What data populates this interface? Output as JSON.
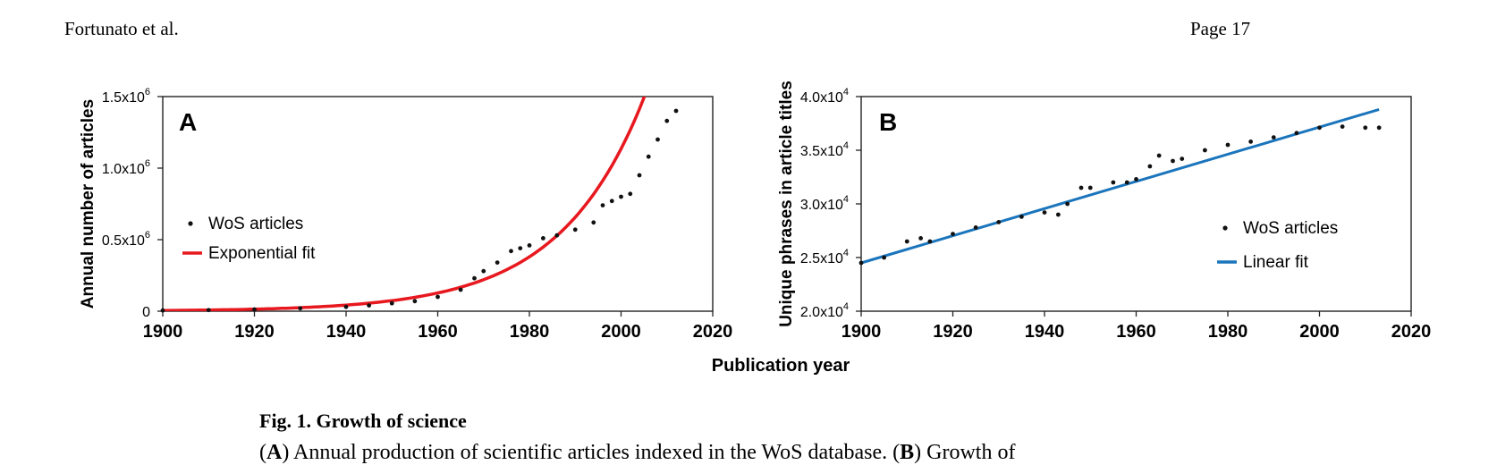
{
  "header": {
    "left": "Fortunato et al.",
    "right": "Page 17"
  },
  "figure": {
    "shared_xlabel": "Publication year",
    "caption_title": "Fig. 1. Growth of science",
    "caption_parts": [
      "(",
      "A",
      ") Annual production of scientific articles indexed in the WoS database. (",
      "B",
      ") Growth of"
    ]
  },
  "colors": {
    "exp_fit": "#e8181f",
    "lin_fit": "#1b75bc",
    "points": "#111111",
    "frame": "#222222"
  },
  "chart_data": [
    {
      "panel": "A",
      "type": "scatter",
      "ylabel": "Annual number of articles",
      "xlim": [
        1900,
        2020
      ],
      "ylim": [
        0,
        1500000
      ],
      "xticks": [
        1900,
        1920,
        1940,
        1960,
        1980,
        2000,
        2020
      ],
      "xtick_labels": [
        "1900",
        "1920",
        "1940",
        "1960",
        "1980",
        "2000",
        "2020"
      ],
      "yticks": [
        0,
        500000,
        1000000,
        1500000
      ],
      "ytick_labels": [
        [
          "0",
          ""
        ],
        [
          "0.5x10",
          "6"
        ],
        [
          "1.0x10",
          "6"
        ],
        [
          "1.5x10",
          "6"
        ]
      ],
      "legend": {
        "position": "center-left",
        "points_label": "WoS articles",
        "fit_label": "Exponential fit"
      },
      "series": [
        {
          "name": "WoS articles",
          "x": [
            1900,
            1910,
            1920,
            1930,
            1940,
            1945,
            1950,
            1955,
            1960,
            1965,
            1968,
            1970,
            1973,
            1976,
            1978,
            1980,
            1983,
            1986,
            1990,
            1994,
            1996,
            1998,
            2000,
            2002,
            2004,
            2006,
            2008,
            2010,
            2012
          ],
          "y": [
            5000,
            8000,
            12000,
            20000,
            30000,
            40000,
            55000,
            70000,
            100000,
            150000,
            230000,
            280000,
            340000,
            420000,
            440000,
            460000,
            510000,
            530000,
            570000,
            620000,
            740000,
            770000,
            800000,
            820000,
            950000,
            1080000,
            1200000,
            1330000,
            1400000
          ]
        },
        {
          "name": "Exponential fit",
          "kind": "exponential",
          "a": 150000,
          "b": 0.0547,
          "x0": 1963
        }
      ]
    },
    {
      "panel": "B",
      "type": "scatter",
      "ylabel": "Unique phrases in article titles",
      "xlim": [
        1900,
        2020
      ],
      "ylim": [
        20000,
        40000
      ],
      "xticks": [
        1900,
        1920,
        1940,
        1960,
        1980,
        2000,
        2020
      ],
      "xtick_labels": [
        "1900",
        "1920",
        "1940",
        "1960",
        "1980",
        "2000",
        "2020"
      ],
      "yticks": [
        20000,
        25000,
        30000,
        35000,
        40000
      ],
      "ytick_labels": [
        [
          "2.0x10",
          "4"
        ],
        [
          "2.5x10",
          "4"
        ],
        [
          "3.0x10",
          "4"
        ],
        [
          "3.5x10",
          "4"
        ],
        [
          "4.0x10",
          "4"
        ]
      ],
      "legend": {
        "position": "center-right",
        "points_label": "WoS articles",
        "fit_label": "Linear fit"
      },
      "series": [
        {
          "name": "WoS articles",
          "x": [
            1900,
            1905,
            1910,
            1913,
            1915,
            1920,
            1925,
            1930,
            1935,
            1940,
            1943,
            1945,
            1948,
            1950,
            1955,
            1958,
            1960,
            1963,
            1965,
            1968,
            1970,
            1975,
            1980,
            1985,
            1990,
            1995,
            2000,
            2005,
            2010,
            2013
          ],
          "y": [
            24500,
            25000,
            26500,
            26800,
            26500,
            27200,
            27800,
            28300,
            28800,
            29200,
            29000,
            30000,
            31500,
            31500,
            32000,
            32000,
            32300,
            33500,
            34500,
            34000,
            34200,
            35000,
            35500,
            35800,
            36200,
            36600,
            37100,
            37200,
            37100,
            37100
          ]
        },
        {
          "name": "Linear fit",
          "kind": "linear",
          "x": [
            1900,
            2013
          ],
          "y": [
            24500,
            38800
          ]
        }
      ]
    }
  ]
}
